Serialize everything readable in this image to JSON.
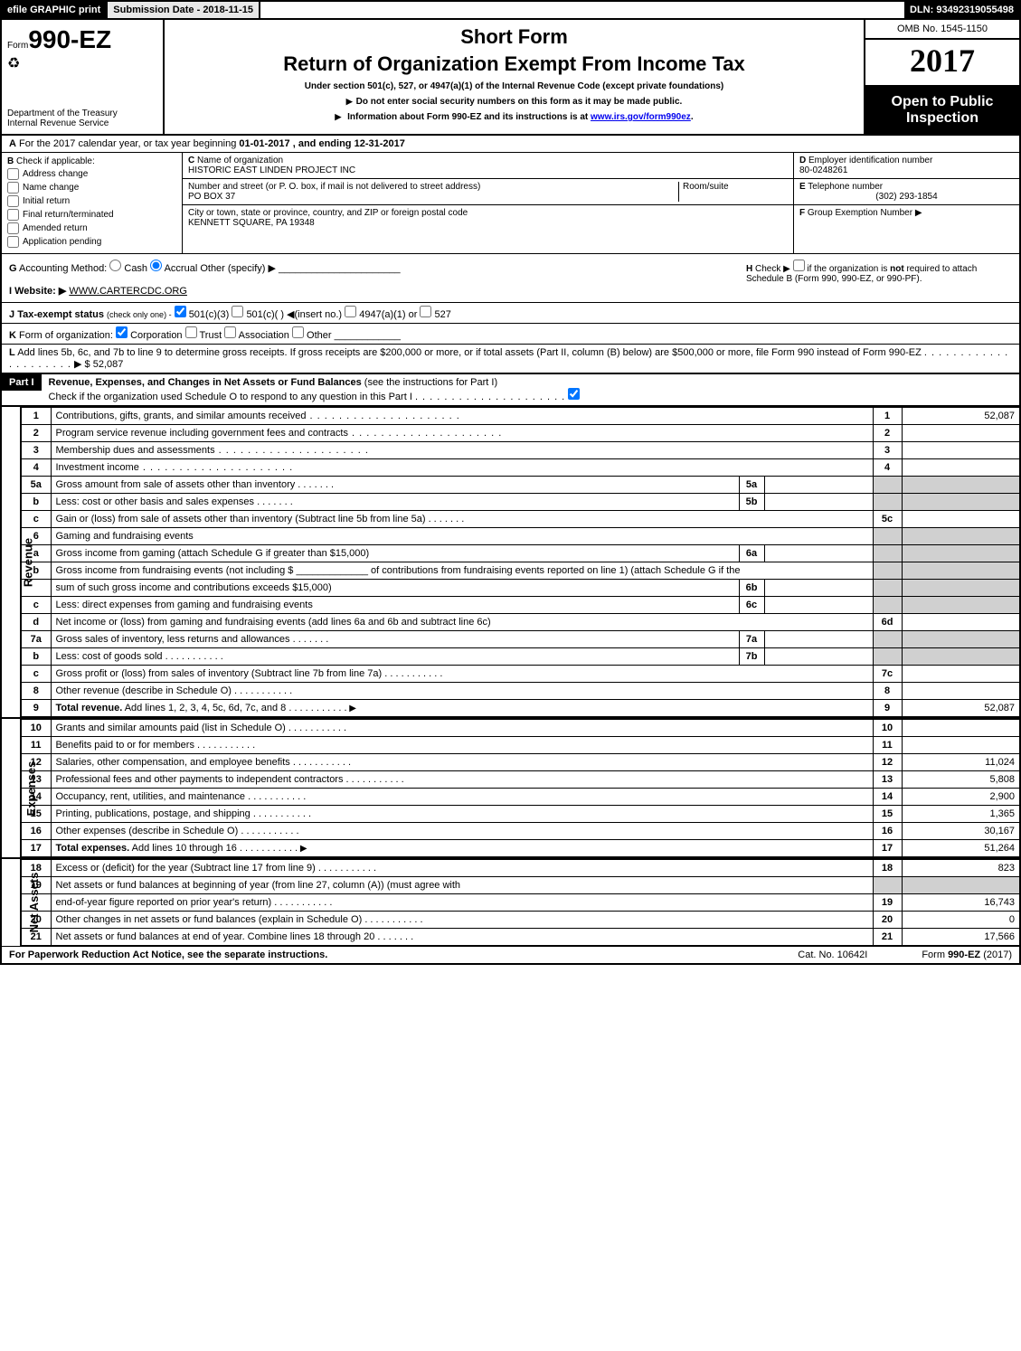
{
  "topbar": {
    "efile": "efile GRAPHIC print",
    "submission": "Submission Date - 2018-11-15",
    "dln": "DLN: 93492319055498"
  },
  "header": {
    "form_prefix": "Form",
    "form_number": "990-EZ",
    "short_form": "Short Form",
    "main_title": "Return of Organization Exempt From Income Tax",
    "subtitle": "Under section 501(c), 527, or 4947(a)(1) of the Internal Revenue Code (except private foundations)",
    "note1": "Do not enter social security numbers on this form as it may be made public.",
    "note2_prefix": "Information about Form 990-EZ and its instructions is at ",
    "note2_link": "www.irs.gov/form990ez",
    "note2_suffix": ".",
    "dept1": "Department of the Treasury",
    "dept2": "Internal Revenue Service",
    "omb": "OMB No. 1545-1150",
    "year": "2017",
    "open_public": "Open to Public Inspection"
  },
  "lineA": {
    "label": "A",
    "text_1": "For the 2017 calendar year, or tax year beginning ",
    "begin": "01-01-2017",
    "text_2": ", and ending ",
    "end": "12-31-2017"
  },
  "boxB": {
    "label": "B",
    "title": "Check if applicable:",
    "opts": [
      "Address change",
      "Name change",
      "Initial return",
      "Final return/terminated",
      "Amended return",
      "Application pending"
    ]
  },
  "boxC": {
    "label": "C",
    "name_label": "Name of organization",
    "name": "HISTORIC EAST LINDEN PROJECT INC",
    "street_label": "Number and street (or P. O. box, if mail is not delivered to street address)",
    "street": "PO BOX 37",
    "room_label": "Room/suite",
    "city_label": "City or town, state or province, country, and ZIP or foreign postal code",
    "city": "KENNETT SQUARE, PA  19348"
  },
  "boxD": {
    "label": "D",
    "title": "Employer identification number",
    "value": "80-0248261"
  },
  "boxE": {
    "label": "E",
    "title": "Telephone number",
    "value": "(302) 293-1854"
  },
  "boxF": {
    "label": "F",
    "title": "Group Exemption Number",
    "arrow": "▶"
  },
  "lineG": {
    "label": "G",
    "text": "Accounting Method:",
    "opts": [
      "Cash",
      "Accrual"
    ],
    "other": "Other (specify) ▶"
  },
  "lineH": {
    "label": "H",
    "text1": "Check ▶",
    "text2": "if the organization is ",
    "not": "not",
    "text3": " required to attach Schedule B (Form 990, 990-EZ, or 990-PF)."
  },
  "lineI": {
    "label": "I",
    "title": "Website: ▶",
    "value": "WWW.CARTERCDC.ORG"
  },
  "lineJ": {
    "label": "J",
    "title": "Tax-exempt status",
    "note": "(check only one) -",
    "opts": [
      "501(c)(3)",
      "501(c)(  ) ◀(insert no.)",
      "4947(a)(1) or",
      "527"
    ]
  },
  "lineK": {
    "label": "K",
    "title": "Form of organization:",
    "opts": [
      "Corporation",
      "Trust",
      "Association",
      "Other"
    ]
  },
  "lineL": {
    "label": "L",
    "text": "Add lines 5b, 6c, and 7b to line 9 to determine gross receipts. If gross receipts are $200,000 or more, or if total assets (Part II, column (B) below) are $500,000 or more, file Form 990 instead of Form 990-EZ",
    "amount": "$ 52,087"
  },
  "part1": {
    "label": "Part I",
    "title": "Revenue, Expenses, and Changes in Net Assets or Fund Balances",
    "note": "(see the instructions for Part I)",
    "check_text": "Check if the organization used Schedule O to respond to any question in this Part I"
  },
  "sections": {
    "revenue": "Revenue",
    "expenses": "Expenses",
    "netassets": "Net Assets"
  },
  "lines": [
    {
      "n": "1",
      "d": "Contributions, gifts, grants, and similar amounts received",
      "num": "1",
      "val": "52,087",
      "dots": "dots"
    },
    {
      "n": "2",
      "d": "Program service revenue including government fees and contracts",
      "num": "2",
      "val": "",
      "dots": "dots"
    },
    {
      "n": "3",
      "d": "Membership dues and assessments",
      "num": "3",
      "val": "",
      "dots": "dots"
    },
    {
      "n": "4",
      "d": "Investment income",
      "num": "4",
      "val": "",
      "dots": "dots"
    },
    {
      "n": "5a",
      "d": "Gross amount from sale of assets other than inventory",
      "mini": "5a",
      "minival": "",
      "dots": "dotss"
    },
    {
      "n": "b",
      "d": "Less: cost or other basis and sales expenses",
      "mini": "5b",
      "minival": "",
      "dots": "dotss"
    },
    {
      "n": "c",
      "d": "Gain or (loss) from sale of assets other than inventory (Subtract line 5b from line 5a)",
      "num": "5c",
      "val": "",
      "dots": "dotss"
    },
    {
      "n": "6",
      "d": "Gaming and fundraising events",
      "shade": true
    },
    {
      "n": "a",
      "d": "Gross income from gaming (attach Schedule G if greater than $15,000)",
      "mini": "6a",
      "minival": ""
    },
    {
      "n": "b",
      "d": "Gross income from fundraising events (not including $ _____________ of contributions from fundraising events reported on line 1) (attach Schedule G if the",
      "multiline": true
    },
    {
      "n": "",
      "d": "sum of such gross income and contributions exceeds $15,000)",
      "mini": "6b",
      "minival": "",
      "dots": ""
    },
    {
      "n": "c",
      "d": "Less: direct expenses from gaming and fundraising events",
      "mini": "6c",
      "minival": "",
      "dots": ""
    },
    {
      "n": "d",
      "d": "Net income or (loss) from gaming and fundraising events (add lines 6a and 6b and subtract line 6c)",
      "num": "6d",
      "val": ""
    },
    {
      "n": "7a",
      "d": "Gross sales of inventory, less returns and allowances",
      "mini": "7a",
      "minival": "",
      "dots": "dotss"
    },
    {
      "n": "b",
      "d": "Less: cost of goods sold",
      "mini": "7b",
      "minival": "",
      "dots": "dotsm"
    },
    {
      "n": "c",
      "d": "Gross profit or (loss) from sales of inventory (Subtract line 7b from line 7a)",
      "num": "7c",
      "val": "",
      "dots": "dotsm"
    },
    {
      "n": "8",
      "d": "Other revenue (describe in Schedule O)",
      "num": "8",
      "val": "",
      "dots": "dotsm"
    },
    {
      "n": "9",
      "d": "Total revenue.",
      "d2": " Add lines 1, 2, 3, 4, 5c, 6d, 7c, and 8",
      "num": "9",
      "val": "52,087",
      "bold": true,
      "arrow": true,
      "dots": "dotsm"
    }
  ],
  "exp_lines": [
    {
      "n": "10",
      "d": "Grants and similar amounts paid (list in Schedule O)",
      "num": "10",
      "val": "",
      "dots": "dotsm"
    },
    {
      "n": "11",
      "d": "Benefits paid to or for members",
      "num": "11",
      "val": "",
      "dots": "dotsm"
    },
    {
      "n": "12",
      "d": "Salaries, other compensation, and employee benefits",
      "num": "12",
      "val": "11,024",
      "dots": "dotsm"
    },
    {
      "n": "13",
      "d": "Professional fees and other payments to independent contractors",
      "num": "13",
      "val": "5,808",
      "dots": "dotsm"
    },
    {
      "n": "14",
      "d": "Occupancy, rent, utilities, and maintenance",
      "num": "14",
      "val": "2,900",
      "dots": "dotsm"
    },
    {
      "n": "15",
      "d": "Printing, publications, postage, and shipping",
      "num": "15",
      "val": "1,365",
      "dots": "dotsm"
    },
    {
      "n": "16",
      "d": "Other expenses (describe in Schedule O)",
      "num": "16",
      "val": "30,167",
      "dots": "dotsm"
    },
    {
      "n": "17",
      "d": "Total expenses.",
      "d2": " Add lines 10 through 16",
      "num": "17",
      "val": "51,264",
      "bold": true,
      "arrow": true,
      "dots": "dotsm"
    }
  ],
  "na_lines": [
    {
      "n": "18",
      "d": "Excess or (deficit) for the year (Subtract line 17 from line 9)",
      "num": "18",
      "val": "823",
      "dots": "dotsm"
    },
    {
      "n": "19",
      "d": "Net assets or fund balances at beginning of year (from line 27, column (A)) (must agree with",
      "shade": true
    },
    {
      "n": "",
      "d": "end-of-year figure reported on prior year's return)",
      "num": "19",
      "val": "16,743",
      "dots": "dotsm"
    },
    {
      "n": "20",
      "d": "Other changes in net assets or fund balances (explain in Schedule O)",
      "num": "20",
      "val": "0",
      "dots": "dotsm"
    },
    {
      "n": "21",
      "d": "Net assets or fund balances at end of year. Combine lines 18 through 20",
      "num": "21",
      "val": "17,566",
      "dots": "dotss"
    }
  ],
  "footer": {
    "left": "For Paperwork Reduction Act Notice, see the separate instructions.",
    "mid": "Cat. No. 10642I",
    "right_prefix": "Form ",
    "right_form": "990-EZ",
    "right_suffix": " (2017)"
  }
}
